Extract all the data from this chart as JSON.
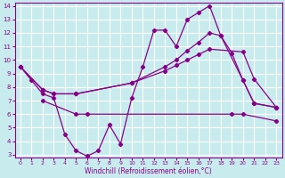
{
  "xlabel": "Windchill (Refroidissement éolien,°C)",
  "background_color": "#c8eced",
  "grid_color": "#ffffff",
  "line_color": "#880088",
  "xlim": [
    -0.5,
    23.5
  ],
  "ylim": [
    2.8,
    14.2
  ],
  "xticks": [
    0,
    1,
    2,
    3,
    4,
    5,
    6,
    7,
    8,
    9,
    10,
    11,
    12,
    13,
    14,
    15,
    16,
    17,
    18,
    19,
    20,
    21,
    22,
    23
  ],
  "yticks": [
    3,
    4,
    5,
    6,
    7,
    8,
    9,
    10,
    11,
    12,
    13,
    14
  ],
  "s1_x": [
    0,
    1,
    2,
    3,
    4,
    5,
    6,
    7,
    8,
    9,
    10,
    11,
    12,
    13,
    14,
    15,
    16,
    17,
    18,
    19,
    20,
    21,
    23
  ],
  "s1_y": [
    9.5,
    8.5,
    7.5,
    7.2,
    4.5,
    3.3,
    2.9,
    3.3,
    5.2,
    3.8,
    7.2,
    9.5,
    12.2,
    12.2,
    11.0,
    13.0,
    13.5,
    14.0,
    11.8,
    10.5,
    8.5,
    6.8,
    6.5
  ],
  "s2_x": [
    2,
    5,
    6,
    19,
    20,
    23
  ],
  "s2_y": [
    7.0,
    6.0,
    6.0,
    6.0,
    6.0,
    5.5
  ],
  "s3_x": [
    0,
    2,
    3,
    5,
    10,
    13,
    14,
    15,
    16,
    17,
    20,
    21,
    23
  ],
  "s3_y": [
    9.5,
    7.8,
    7.5,
    7.5,
    8.3,
    9.2,
    9.6,
    10.0,
    10.4,
    10.8,
    10.6,
    8.6,
    6.5
  ],
  "s4_x": [
    0,
    2,
    3,
    5,
    10,
    13,
    14,
    15,
    16,
    17,
    18,
    20,
    21,
    23
  ],
  "s4_y": [
    9.5,
    7.8,
    7.5,
    7.5,
    8.3,
    9.5,
    10.0,
    10.7,
    11.3,
    12.0,
    11.8,
    8.5,
    6.8,
    6.5
  ]
}
